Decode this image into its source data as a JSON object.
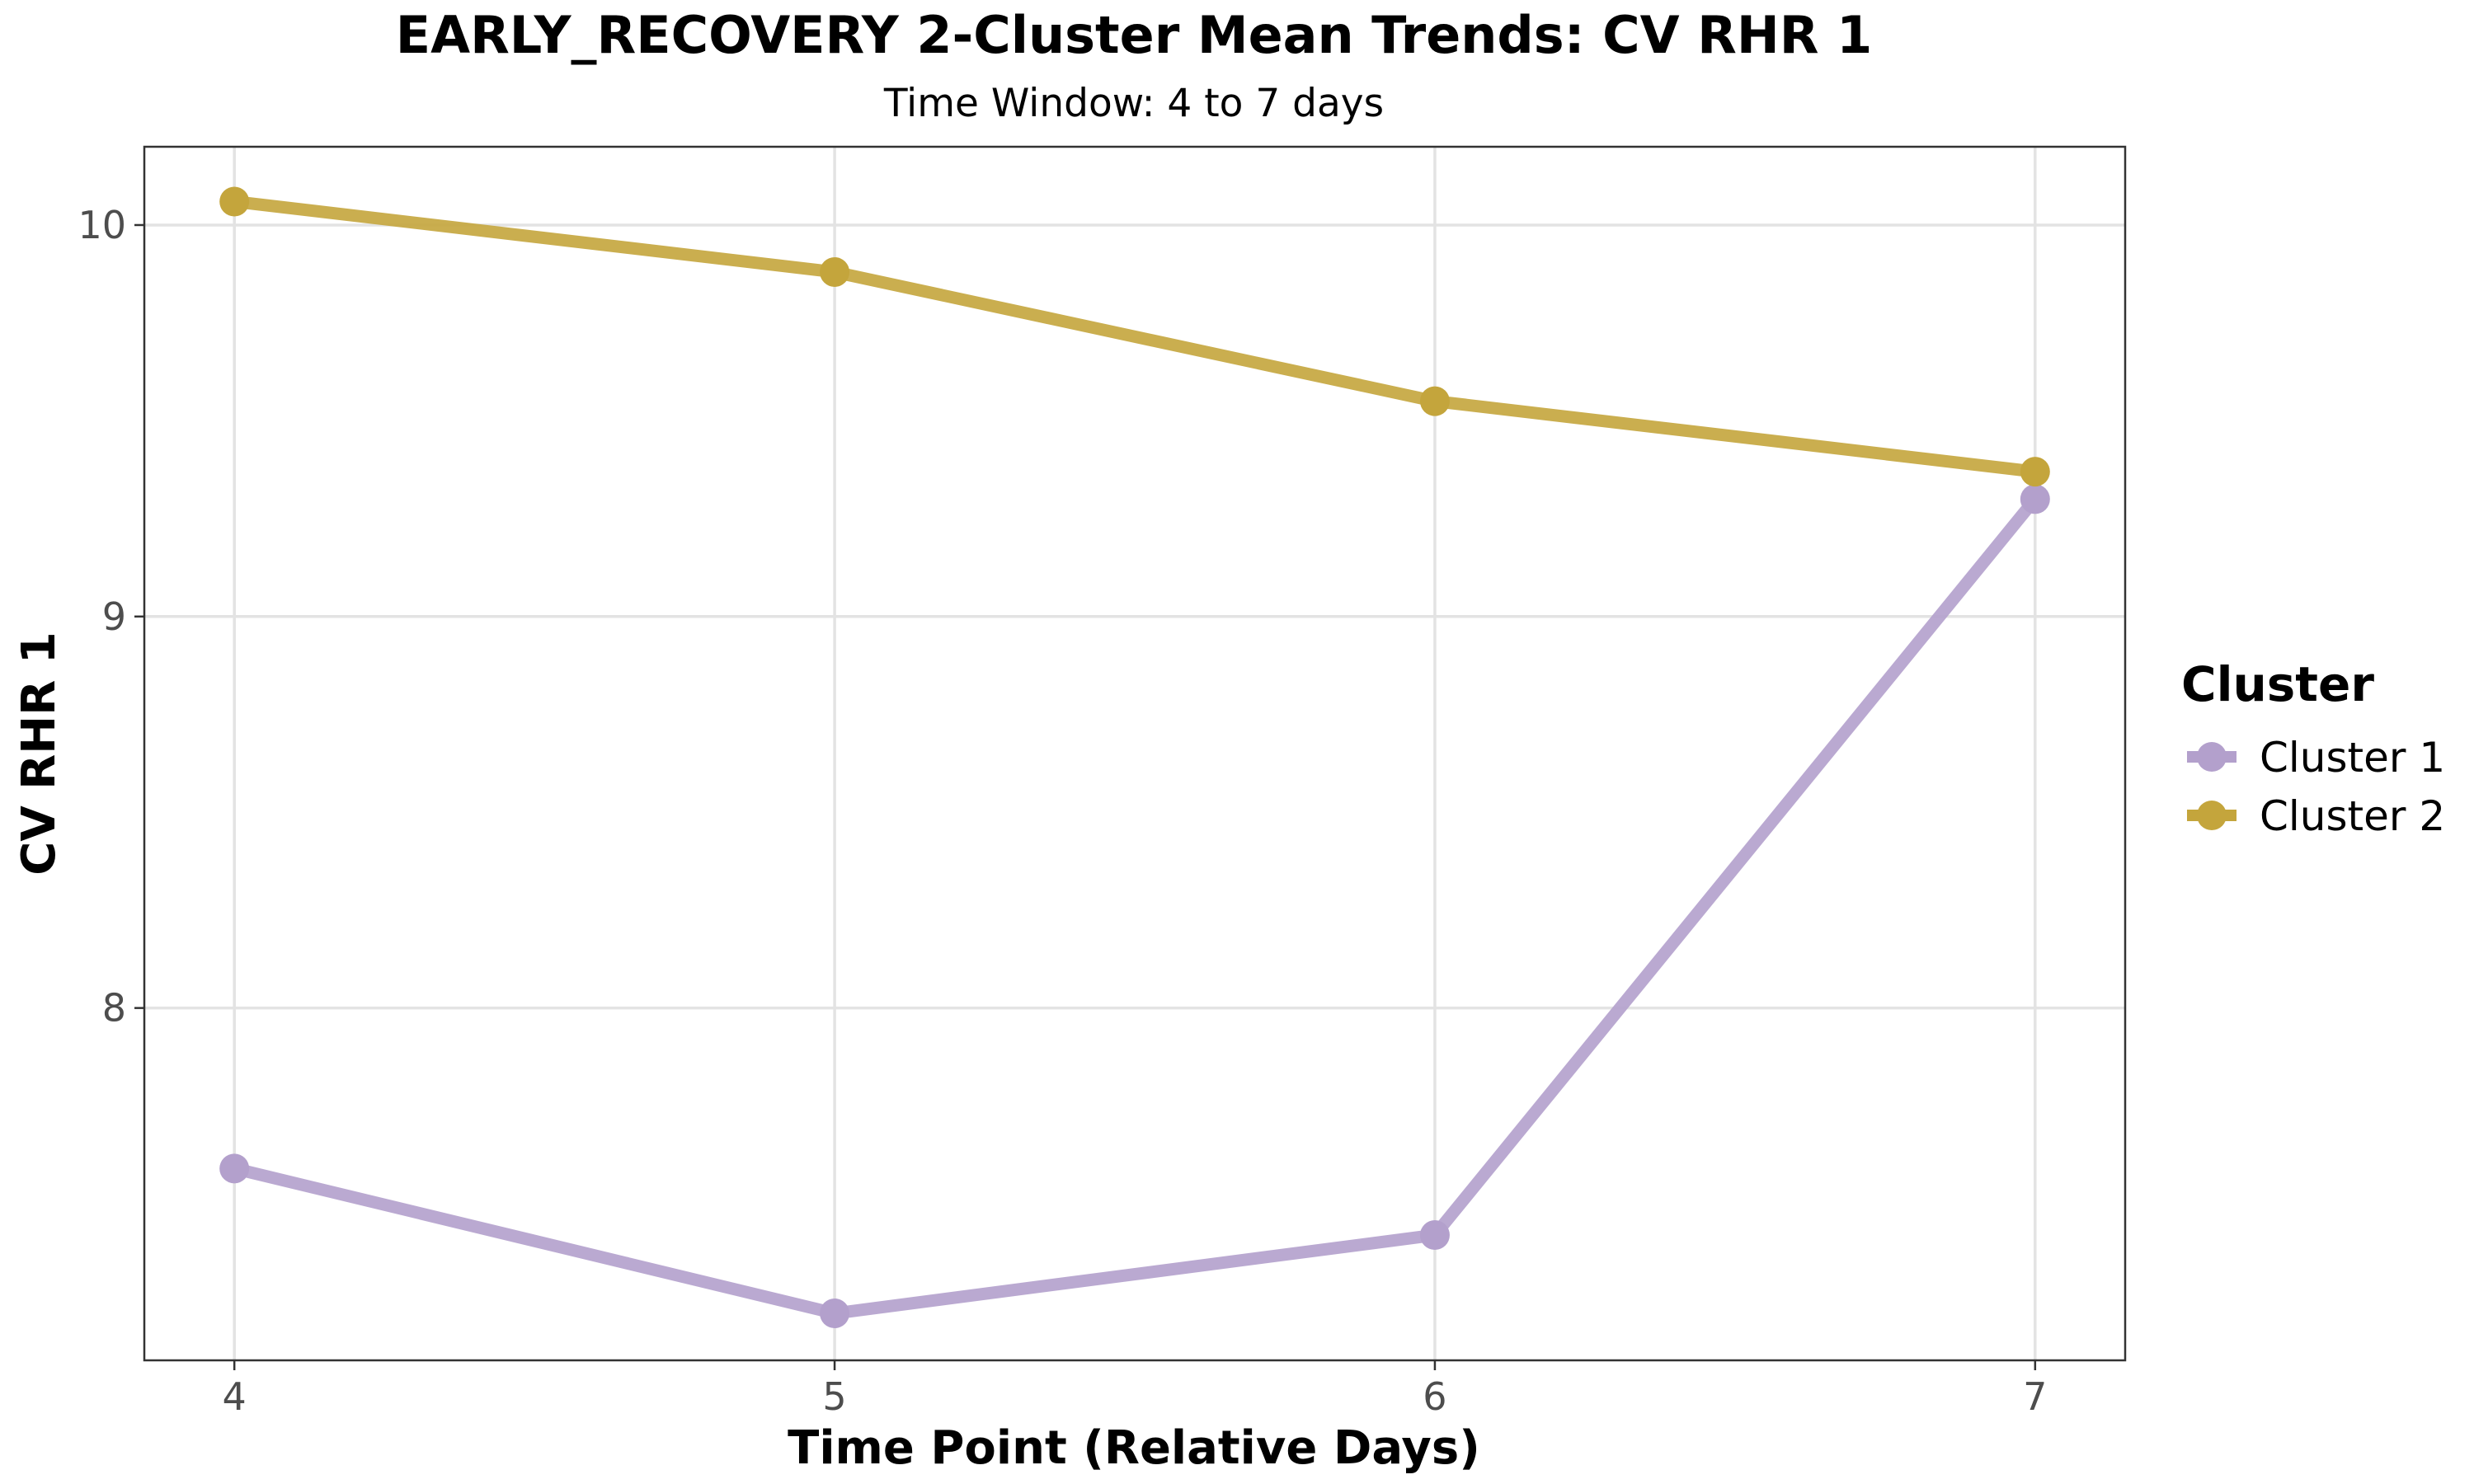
{
  "chart_data": {
    "type": "line",
    "title": "EARLY_RECOVERY 2-Cluster Mean Trends: CV RHR 1",
    "subtitle": "Time Window: 4 to 7 days",
    "xlabel": "Time Point (Relative Days)",
    "ylabel": "CV RHR 1",
    "x": [
      4,
      5,
      6,
      7
    ],
    "x_ticks": [
      "4",
      "5",
      "6",
      "7"
    ],
    "y_ticks": [
      "8",
      "9",
      "10"
    ],
    "y_tick_values": [
      8,
      9,
      10
    ],
    "xlim": [
      3.85,
      7.15
    ],
    "ylim": [
      7.1,
      10.2
    ],
    "grid": true,
    "legend": {
      "title": "Cluster",
      "position": "right"
    },
    "series": [
      {
        "name": "Cluster 1",
        "color": "#b3a0cc",
        "values": [
          7.59,
          7.22,
          7.42,
          9.3
        ]
      },
      {
        "name": "Cluster 2",
        "color": "#c4a53c",
        "values": [
          10.06,
          9.88,
          9.55,
          9.37
        ]
      }
    ]
  }
}
